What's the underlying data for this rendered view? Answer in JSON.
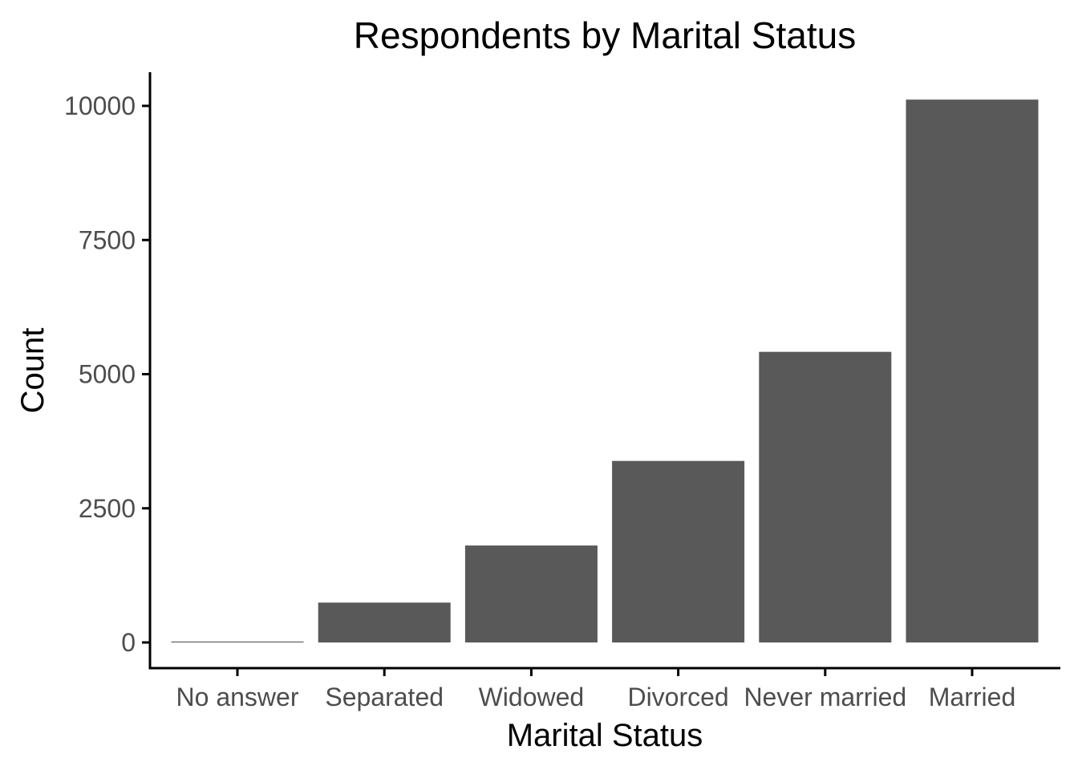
{
  "chart_data": {
    "type": "bar",
    "title": "Respondents by Marital Status",
    "xlabel": "Marital Status",
    "ylabel": "Count",
    "categories": [
      "No answer",
      "Separated",
      "Widowed",
      "Divorced",
      "Never married",
      "Married"
    ],
    "values": [
      17,
      743,
      1807,
      3383,
      5416,
      10117
    ],
    "ylim": [
      0,
      10600
    ],
    "yticks": [
      0,
      2500,
      5000,
      7500,
      10000
    ],
    "yticks_labels": [
      "0",
      "2500",
      "5000",
      "7500",
      "10000"
    ],
    "grid": false,
    "legend": "none",
    "bar_color": "#595959",
    "axis_color": "#000000",
    "tick_label_color": "#4d4d4d"
  }
}
